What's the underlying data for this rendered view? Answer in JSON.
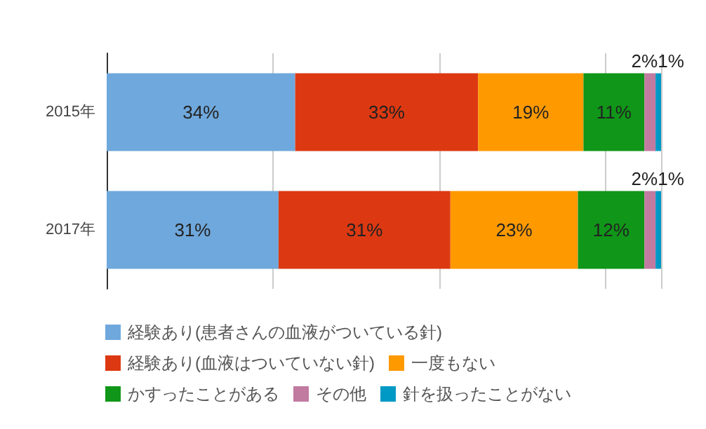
{
  "chart_data": {
    "type": "bar",
    "orientation": "horizontal",
    "stacked": true,
    "categories": [
      "2015年",
      "2017年"
    ],
    "series": [
      {
        "name": "経験あり(患者さんの血液がついている針)",
        "color": "#6fa8dc",
        "values": [
          34,
          31
        ],
        "value_labels": [
          "34%",
          "31%"
        ]
      },
      {
        "name": "経験あり(血液はついていない針)",
        "color": "#dc3912",
        "values": [
          33,
          31
        ],
        "value_labels": [
          "33%",
          "31%"
        ]
      },
      {
        "name": "一度もない",
        "color": "#ff9900",
        "values": [
          19,
          23
        ],
        "value_labels": [
          "19%",
          "23%"
        ]
      },
      {
        "name": "かすったことがある",
        "color": "#109618",
        "values": [
          11,
          12
        ],
        "value_labels": [
          "11%",
          "12%"
        ]
      },
      {
        "name": "その他",
        "color": "#c27ba0",
        "values": [
          2,
          2
        ],
        "value_labels": [
          "2%",
          "2%"
        ]
      },
      {
        "name": "針を扱ったことがない",
        "color": "#0099c6",
        "values": [
          1,
          1
        ],
        "value_labels": [
          "1%",
          "1%"
        ]
      }
    ],
    "grid": "x",
    "legend": "bottom",
    "tick_labels": "y"
  }
}
